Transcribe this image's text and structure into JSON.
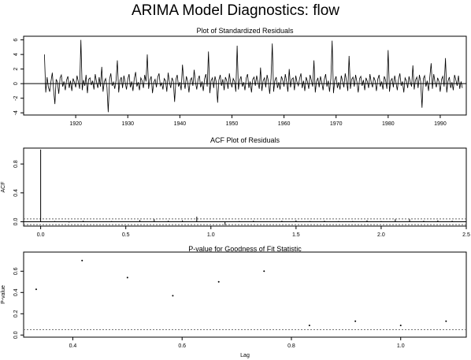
{
  "figure": {
    "title": "ARIMA Model Diagnostics:  flow"
  },
  "chart_data": [
    {
      "type": "line",
      "title": "Plot of Standardized Residuals",
      "xlabel": "",
      "ylabel": "",
      "xlim": [
        1910,
        1995
      ],
      "ylim": [
        -4.3,
        6.5
      ],
      "x_ticks": [
        1920,
        1930,
        1940,
        1950,
        1960,
        1970,
        1980,
        1990
      ],
      "y_ticks": [
        -4,
        -2,
        0,
        2,
        4,
        6
      ],
      "reference_lines": [
        0
      ],
      "series": [
        {
          "x_start": 1914.0,
          "x_step": 0.25,
          "values": [
            4.0,
            -1.2,
            0.9,
            -0.5,
            -1.1,
            0.3,
            1.5,
            -0.8,
            -2.8,
            0.6,
            0.2,
            -1.4,
            0.8,
            1.2,
            -0.4,
            0.3,
            -0.9,
            0.5,
            1.0,
            -0.6,
            0.4,
            -1.0,
            0.7,
            0.2,
            -0.5,
            1.1,
            0.3,
            -0.7,
            6.0,
            -0.9,
            0.5,
            -0.3,
            1.2,
            -1.3,
            0.6,
            0.8,
            -0.2,
            0.4,
            -0.8,
            1.3,
            0.2,
            -0.6,
            0.9,
            -0.4,
            2.3,
            -1.1,
            0.3,
            0.7,
            -0.5,
            -3.9,
            0.6,
            1.4,
            -0.3,
            0.2,
            -0.7,
            0.5,
            3.2,
            -1.2,
            0.4,
            0.9,
            -0.6,
            1.1,
            0.2,
            -0.8,
            0.6,
            1.3,
            -0.5,
            0.3,
            -1.0,
            0.7,
            1.6,
            -0.4,
            0.2,
            -0.9,
            0.8,
            0.4,
            -0.6,
            1.2,
            0.3,
            4.0,
            -0.7,
            0.5,
            1.0,
            -1.3,
            0.2,
            0.6,
            -0.5,
            0.9,
            1.4,
            -0.3,
            0.1,
            -0.8,
            0.7,
            0.4,
            -1.1,
            1.5,
            0.2,
            -0.6,
            0.8,
            0.3,
            -2.5,
            0.6,
            1.2,
            -0.4,
            0.2,
            -0.9,
            2.6,
            0.4,
            -0.7,
            1.0,
            0.3,
            -1.2,
            0.5,
            0.8,
            -0.3,
            1.9,
            0.2,
            -0.8,
            0.6,
            1.1,
            -0.5,
            0.3,
            -1.0,
            0.7,
            1.3,
            -0.4,
            4.4,
            -1.3,
            0.4,
            0.8,
            -0.6,
            1.0,
            0.2,
            -2.6,
            0.5,
            1.2,
            -0.3,
            0.6,
            -0.9,
            0.9,
            0.4,
            -0.7,
            1.4,
            0.2,
            -0.5,
            0.7,
            0.3,
            -1.1,
            5.2,
            -0.8,
            0.5,
            1.0,
            -0.4,
            0.2,
            -0.9,
            0.8,
            1.3,
            -0.6,
            0.3,
            -1.2,
            0.6,
            0.9,
            -0.3,
            1.1,
            0.2,
            -0.7,
            2.2,
            -1.0,
            0.4,
            0.8,
            -0.5,
            1.2,
            0.3,
            -1.4,
            0.7,
            5.5,
            -1.1,
            0.4,
            0.9,
            -0.6,
            0.2,
            -0.8,
            1.0,
            0.5,
            -0.4,
            1.3,
            0.3,
            -1.1,
            2.0,
            -0.5,
            0.6,
            0.8,
            -0.9,
            1.1,
            0.2,
            -0.3,
            0.7,
            1.4,
            -0.6,
            0.4,
            -1.0,
            0.9,
            0.3,
            -0.7,
            1.2,
            0.5,
            -0.4,
            3.2,
            -1.2,
            0.3,
            0.8,
            -0.5,
            1.0,
            0.2,
            -0.9,
            0.6,
            1.3,
            -0.4,
            0.4,
            -1.1,
            0.7,
            5.9,
            -1.3,
            0.5,
            1.0,
            -0.6,
            0.2,
            -0.8,
            1.1,
            0.3,
            -0.5,
            1.4,
            0.4,
            -1.0,
            3.8,
            -0.7,
            0.6,
            0.9,
            -0.4,
            1.2,
            0.2,
            -1.2,
            0.7,
            1.0,
            -0.3,
            0.5,
            -0.9,
            0.8,
            0.3,
            -0.6,
            1.3,
            0.2,
            -0.5,
            0.9,
            0.4,
            -1.0,
            0.6,
            1.2,
            -0.4,
            0.3,
            -0.8,
            1.0,
            0.5,
            -0.7,
            4.6,
            -1.1,
            0.4,
            0.7,
            -0.5,
            1.1,
            0.2,
            -0.9,
            0.6,
            1.4,
            -0.3,
            0.3,
            -1.2,
            0.8,
            0.4,
            -0.6,
            1.0,
            0.2,
            -0.4,
            2.5,
            -0.8,
            0.5,
            0.9,
            -0.6,
            1.2,
            0.3,
            -3.3,
            0.7,
            1.1,
            -0.4,
            0.4,
            -1.0,
            0.9,
            2.8,
            -0.7,
            1.3,
            0.2,
            -0.5,
            0.8,
            0.3,
            -1.1,
            0.6,
            1.0,
            -0.4,
            3.5,
            -1.2,
            0.4,
            0.9,
            -0.6,
            0.2,
            -0.9,
            1.2,
            0.5,
            -0.3,
            1.1,
            -0.7,
            0.3,
            -0.6
          ]
        }
      ]
    },
    {
      "type": "bar",
      "title": "ACF Plot of Residuals",
      "xlabel": "",
      "ylabel": "ACF",
      "xlim": [
        -0.1,
        2.5
      ],
      "ylim": [
        -0.06,
        1.02
      ],
      "x_ticks": [
        0.0,
        0.5,
        1.0,
        1.5,
        2.0,
        2.5
      ],
      "y_ticks": [
        0.0,
        0.4,
        0.8
      ],
      "confidence_band": [
        -0.04,
        0.04
      ],
      "x": [
        0.0,
        0.083,
        0.167,
        0.25,
        0.333,
        0.417,
        0.5,
        0.583,
        0.667,
        0.75,
        0.833,
        0.917,
        1.0,
        1.083,
        1.167,
        1.25,
        1.333,
        1.417,
        1.5,
        1.583,
        1.667,
        1.75,
        1.833,
        1.917,
        2.0,
        2.083,
        2.167,
        2.25,
        2.333,
        2.417,
        2.5
      ],
      "values": [
        1.0,
        0.01,
        -0.01,
        0.015,
        -0.005,
        0.01,
        0.005,
        0.025,
        0.035,
        0.015,
        0.02,
        0.07,
        -0.005,
        -0.045,
        0.01,
        0.015,
        0.005,
        0.015,
        0.02,
        0.01,
        0.015,
        0.01,
        0.01,
        0.02,
        0.01,
        0.035,
        0.035,
        0.015,
        0.02,
        0.015,
        0.025
      ]
    },
    {
      "type": "scatter",
      "title": "P-value for Goodness of Fit Statistic",
      "xlabel": "Lag",
      "ylabel": "P-value",
      "xlim": [
        0.31,
        1.12
      ],
      "ylim": [
        -0.02,
        0.78
      ],
      "x_ticks": [
        0.4,
        0.6,
        0.8,
        1.0
      ],
      "y_ticks": [
        0.0,
        0.2,
        0.4,
        0.6
      ],
      "reference_lines": [
        0.05
      ],
      "x": [
        0.333,
        0.417,
        0.5,
        0.583,
        0.667,
        0.75,
        0.833,
        0.917,
        1.0,
        1.083
      ],
      "values": [
        0.43,
        0.7,
        0.54,
        0.37,
        0.5,
        0.6,
        0.09,
        0.13,
        0.09,
        0.13
      ]
    }
  ]
}
